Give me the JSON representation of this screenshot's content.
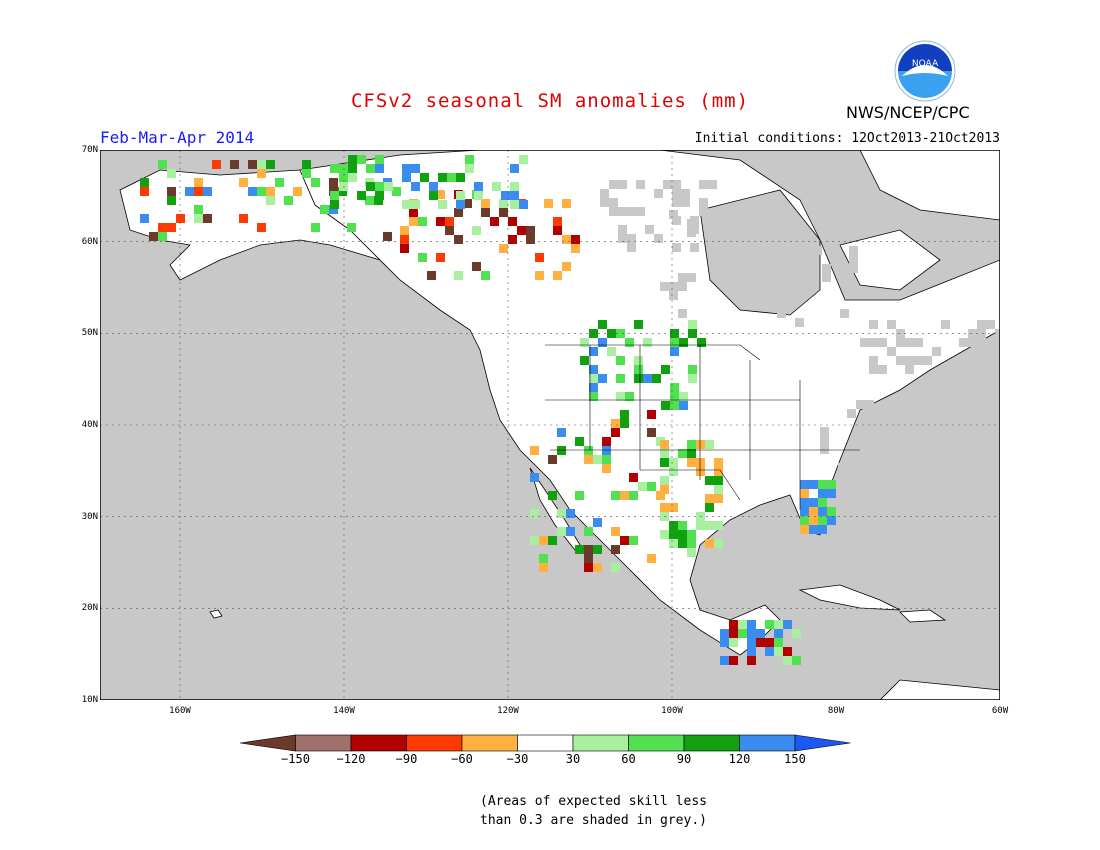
{
  "title": "CFSv2 seasonal SM anomalies (mm)",
  "period": "Feb-Mar-Apr 2014",
  "initial_conditions": "Initial conditions: 12Oct2013-21Oct2013",
  "agency": "NWS/NCEP/CPC",
  "logo_text": "NOAA",
  "lat_labels": [
    "70N",
    "60N",
    "50N",
    "40N",
    "30N",
    "20N",
    "10N"
  ],
  "lon_labels": [
    "160W",
    "140W",
    "120W",
    "100W",
    "80W",
    "60W"
  ],
  "colorbar": {
    "labels": [
      "-150",
      "-120",
      "-90",
      "-60",
      "-30",
      "30",
      "60",
      "90",
      "120",
      "150"
    ],
    "colors": [
      "#6b3a2a",
      "#a0706a",
      "#b00000",
      "#ff3a00",
      "#ffb040",
      "#ffffff",
      "#a8f0a0",
      "#50e050",
      "#10a010",
      "#3a8cf0",
      "#1a5af0"
    ]
  },
  "note_line1": "(Areas of expected skill less",
  "note_line2": "than 0.3 are shaded in grey.)",
  "colors": {
    "ocean": "#c8c8c8",
    "land": "#ffffff",
    "skill_grey": "#c8c8c8"
  }
}
